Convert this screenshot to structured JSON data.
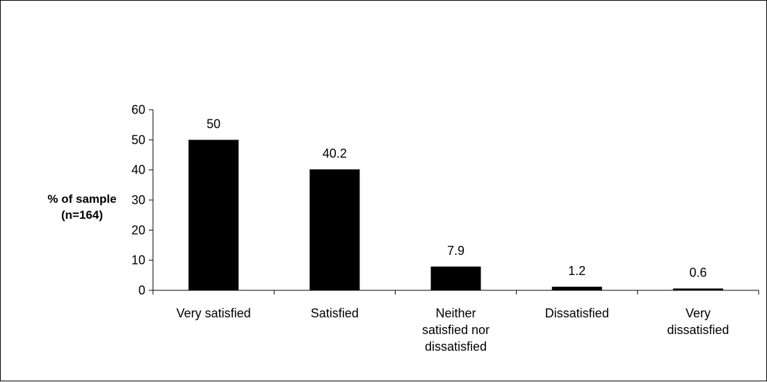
{
  "chart_data": {
    "type": "bar",
    "title": "",
    "xlabel": "",
    "ylabel_lines": [
      "% of sample",
      "(n=164)"
    ],
    "categories": [
      [
        "Very satisfied"
      ],
      [
        "Satisfied"
      ],
      [
        "Neither",
        "satisfied nor",
        "dissatisfied"
      ],
      [
        "Dissatisfied"
      ],
      [
        "Very",
        "dissatisfied"
      ]
    ],
    "values": [
      50,
      40.2,
      7.9,
      1.2,
      0.6
    ],
    "data_labels": [
      "50",
      "40.2",
      "7.9",
      "1.2",
      "0.6"
    ],
    "ylim": [
      0,
      60
    ],
    "yticks": [
      "0",
      "10",
      "20",
      "30",
      "40",
      "50",
      "60"
    ],
    "bar_color": "#000000",
    "grid": false,
    "legend": "none"
  }
}
